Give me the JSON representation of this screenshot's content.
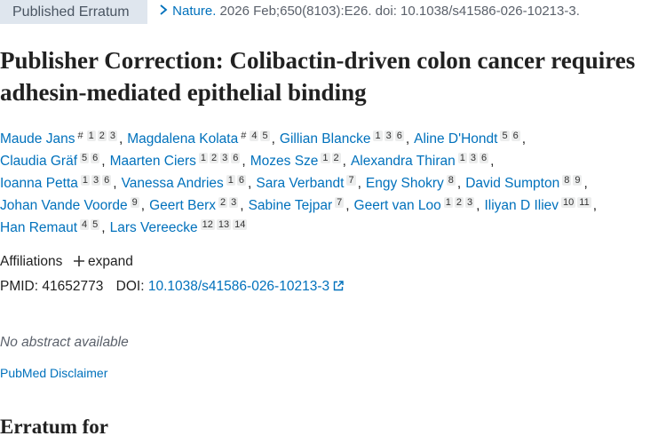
{
  "header": {
    "badge": "Published Erratum",
    "journal": "Nature.",
    "citation": "2026 Feb;650(8103):E26. doi: 10.1038/s41586-026-10213-3."
  },
  "title": "Publisher Correction: Colibactin-driven colon cancer requires adhesin-mediated epithelial binding",
  "authors": [
    {
      "name": "Maude Jans",
      "marker": "#",
      "affiliations": [
        1,
        2,
        3
      ]
    },
    {
      "name": "Magdalena Kolata",
      "marker": "#",
      "affiliations": [
        4,
        5
      ]
    },
    {
      "name": "Gillian Blancke",
      "affiliations": [
        1,
        3,
        6
      ]
    },
    {
      "name": "Aline D'Hondt",
      "affiliations": [
        5,
        6
      ]
    },
    {
      "name": "Claudia Gräf",
      "affiliations": [
        5,
        6
      ]
    },
    {
      "name": "Maarten Ciers",
      "affiliations": [
        1,
        2,
        3,
        6
      ]
    },
    {
      "name": "Mozes Sze",
      "affiliations": [
        1,
        2
      ]
    },
    {
      "name": "Alexandra Thiran",
      "affiliations": [
        1,
        3,
        6
      ]
    },
    {
      "name": "Ioanna Petta",
      "affiliations": [
        1,
        3,
        6
      ]
    },
    {
      "name": "Vanessa Andries",
      "affiliations": [
        1,
        6
      ]
    },
    {
      "name": "Sara Verbandt",
      "affiliations": [
        7
      ]
    },
    {
      "name": "Engy Shokry",
      "affiliations": [
        8
      ]
    },
    {
      "name": "David Sumpton",
      "affiliations": [
        8,
        9
      ]
    },
    {
      "name": "Johan Vande Voorde",
      "affiliations": [
        9
      ]
    },
    {
      "name": "Geert Berx",
      "affiliations": [
        2,
        3
      ]
    },
    {
      "name": "Sabine Tejpar",
      "affiliations": [
        7
      ]
    },
    {
      "name": "Geert van Loo",
      "affiliations": [
        1,
        2,
        3
      ]
    },
    {
      "name": "Iliyan D Iliev",
      "affiliations": [
        10,
        11
      ]
    },
    {
      "name": "Han Remaut",
      "affiliations": [
        4,
        5
      ]
    },
    {
      "name": "Lars Vereecke",
      "affiliations": [
        12,
        13,
        14
      ]
    }
  ],
  "affiliations": {
    "label": "Affiliations",
    "toggle": "expand"
  },
  "ids": {
    "pmid_label": "PMID:",
    "pmid": "41652773",
    "doi_label": "DOI:",
    "doi": "10.1038/s41586-026-10213-3"
  },
  "abstract": "No abstract available",
  "disclaimer": "PubMed Disclaimer",
  "erratum_heading": "Erratum for"
}
